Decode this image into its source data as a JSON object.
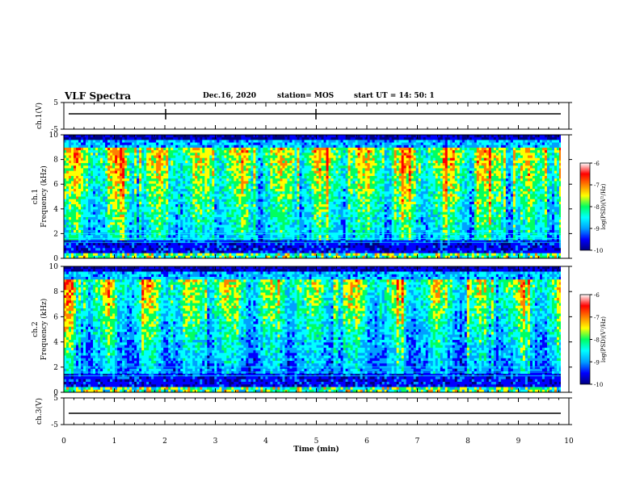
{
  "header": {
    "title": "VLF Spectra",
    "date": "Dec.16, 2020",
    "station": "station= MOS",
    "start": "start UT =  14: 50: 1"
  },
  "chart_data": [
    {
      "type": "line",
      "name": "ch1-waveform",
      "ylabel": "ch.1(V)",
      "ylim": [
        -5,
        5
      ],
      "yticks": [
        "5",
        "-5"
      ],
      "xlim": [
        0,
        10
      ]
    },
    {
      "type": "heatmap",
      "name": "ch1-spectrogram",
      "ylabel": "ch.1 Frequency (kHz)",
      "ylabel_ch": "ch.1",
      "ylabel_freq": "Frequency (kHz)",
      "ylim": [
        0,
        10
      ],
      "yticks": [
        "0",
        "2",
        "4",
        "6",
        "8",
        "10"
      ],
      "xlim": [
        0,
        10
      ],
      "colorbar": {
        "label": "log(PSD)(V²/Hz)",
        "range": [
          -10,
          -6
        ],
        "ticks": [
          "-6",
          "-7",
          "-8",
          "-9",
          "-10"
        ]
      }
    },
    {
      "type": "heatmap",
      "name": "ch2-spectrogram",
      "ylabel": "ch.2 Frequency (kHz)",
      "ylabel_ch": "ch.2",
      "ylabel_freq": "Frequency (kHz)",
      "ylim": [
        0,
        10
      ],
      "yticks": [
        "0",
        "2",
        "4",
        "6",
        "8",
        "10"
      ],
      "xlim": [
        0,
        10
      ],
      "colorbar": {
        "label": "log(PSD)(V²/Hz)",
        "range": [
          -10,
          -6
        ],
        "ticks": [
          "-6",
          "-7",
          "-8",
          "-9",
          "-10"
        ]
      }
    },
    {
      "type": "line",
      "name": "ch3-waveform",
      "ylabel": "ch.3(V)",
      "ylim": [
        -5,
        5
      ],
      "yticks": [
        "5",
        "-5"
      ],
      "xlim": [
        0,
        10
      ]
    }
  ],
  "x_axis": {
    "label": "Time (min)",
    "ticks": [
      "0",
      "1",
      "2",
      "3",
      "4",
      "5",
      "6",
      "7",
      "8",
      "9",
      "10"
    ]
  },
  "colormap": [
    "#000080",
    "#0000ff",
    "#00a0ff",
    "#00ffff",
    "#00ff60",
    "#ffff00",
    "#ff8000",
    "#ff0000",
    "#ffffff"
  ]
}
